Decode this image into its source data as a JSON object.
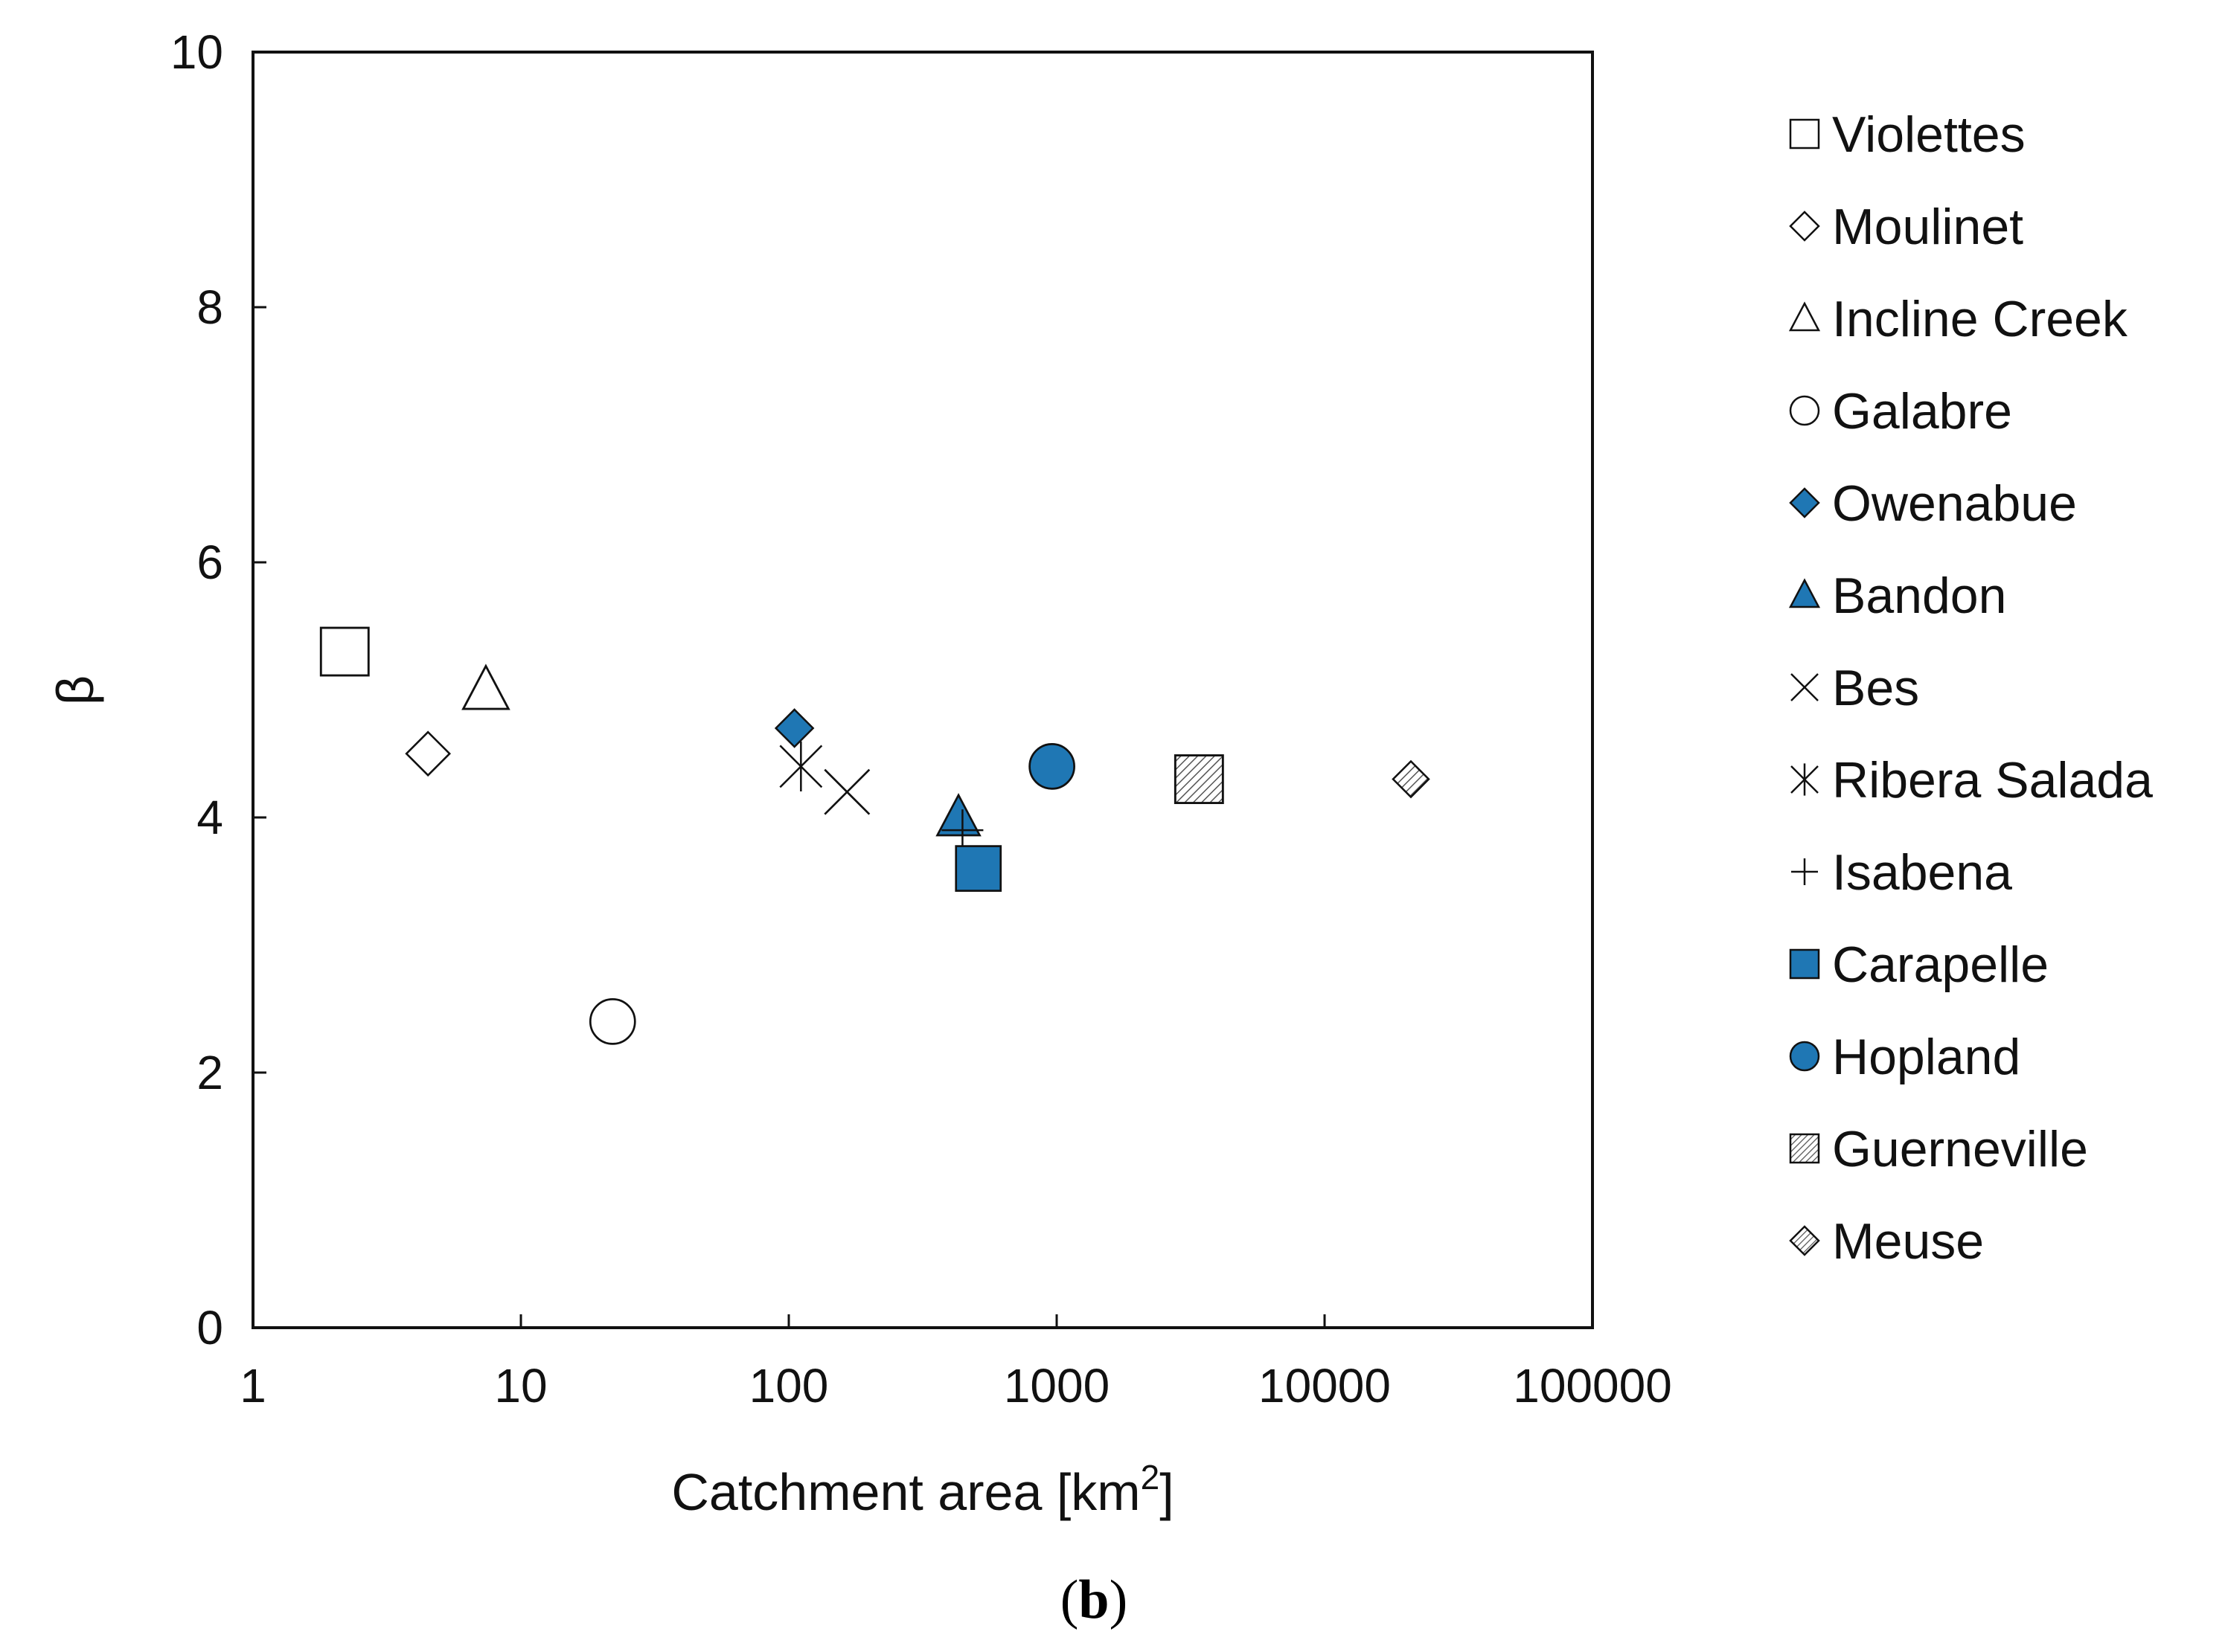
{
  "chart_data": {
    "type": "scatter",
    "title": "",
    "xscale": "log",
    "xlim": [
      1,
      100000
    ],
    "ylim": [
      0,
      10
    ],
    "x_ticks": [
      1,
      10,
      100,
      1000,
      10000,
      100000
    ],
    "x_tick_labels": [
      "1",
      "10",
      "100",
      "1000",
      "10000",
      "100000"
    ],
    "y_ticks": [
      0,
      2,
      4,
      6,
      8,
      10
    ],
    "y_tick_labels": [
      "0",
      "2",
      "4",
      "6",
      "8",
      "10"
    ],
    "xlabel_main": "Catchment area [km",
    "xlabel_sup": "2",
    "xlabel_end": "]",
    "ylabel": "β",
    "legend_position": "right",
    "series": [
      {
        "name": "Violettes",
        "marker": "square-open",
        "x": 2.2,
        "y": 5.3
      },
      {
        "name": "Moulinet",
        "marker": "diamond-open",
        "x": 4.5,
        "y": 4.5
      },
      {
        "name": "Incline Creek",
        "marker": "triangle-open",
        "x": 7.4,
        "y": 5.0
      },
      {
        "name": "Galabre",
        "marker": "circle-open",
        "x": 22,
        "y": 2.4
      },
      {
        "name": "Owenabue",
        "marker": "diamond-blue",
        "x": 105,
        "y": 4.7
      },
      {
        "name": "Bandon",
        "marker": "triangle-blue",
        "x": 430,
        "y": 4.0
      },
      {
        "name": "Bes",
        "marker": "x",
        "x": 165,
        "y": 4.2
      },
      {
        "name": "Ribera Salada",
        "marker": "asterisk",
        "x": 111,
        "y": 4.4
      },
      {
        "name": "Isabena",
        "marker": "plus",
        "x": 445,
        "y": 3.9
      },
      {
        "name": "Carapelle",
        "marker": "square-blue",
        "x": 510,
        "y": 3.6
      },
      {
        "name": "Hopland",
        "marker": "circle-blue",
        "x": 960,
        "y": 4.4
      },
      {
        "name": "Guerneville",
        "marker": "square-hatched",
        "x": 3400,
        "y": 4.3
      },
      {
        "name": "Meuse",
        "marker": "diamond-hatched",
        "x": 21000,
        "y": 4.3
      }
    ],
    "colors": {
      "blue_fill": "#1f77b4",
      "stroke": "#111111",
      "hatch": "#555555"
    }
  },
  "panel_label": {
    "open": "(",
    "letter": "b",
    "close": ")"
  }
}
